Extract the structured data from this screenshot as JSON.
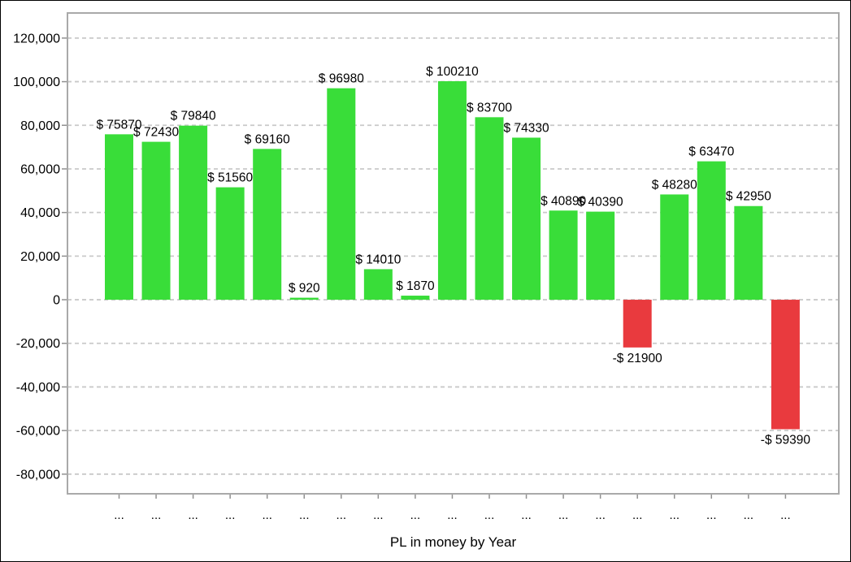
{
  "chart_data": {
    "type": "bar",
    "title": "PL in money by Year",
    "xlabel": "PL in money by Year",
    "ylabel": "",
    "legend": "none",
    "grid": "horizontal-dashed",
    "ylim": [
      -89000,
      131500
    ],
    "y_ticks": [
      120000,
      100000,
      80000,
      60000,
      40000,
      20000,
      0,
      -20000,
      -40000,
      -60000,
      -80000
    ],
    "y_tick_labels": [
      "120,000",
      "100,000",
      "80,000",
      "60,000",
      "40,000",
      "20,000",
      "0",
      "-20,000",
      "-40,000",
      "-60,000",
      "-80,000"
    ],
    "categories": [
      "...",
      "...",
      "...",
      "...",
      "...",
      "...",
      "...",
      "...",
      "...",
      "...",
      "...",
      "...",
      "...",
      "...",
      "...",
      "...",
      "...",
      "...",
      "..."
    ],
    "values": [
      75870,
      72430,
      79840,
      51560,
      69160,
      920,
      96980,
      14010,
      1870,
      100210,
      83700,
      74330,
      40890,
      40390,
      -21900,
      48280,
      63470,
      42950,
      -59390
    ],
    "bar_labels": [
      "$ 75870",
      "$ 72430",
      "$ 79840",
      "$ 51560",
      "$ 69160",
      "$ 920",
      "$ 96980",
      "$ 14010",
      "$ 1870",
      "$ 100210",
      "$ 83700",
      "$ 74330",
      "$ 40890",
      "$ 40390",
      "-$ 21900",
      "$ 48280",
      "$ 63470",
      "$ 42950",
      "-$ 59390"
    ],
    "colors": {
      "positive_bar": "#39DD39",
      "negative_bar": "#E93A3E",
      "gridline": "#C9C9C9",
      "plot_border": "#A9A9A9",
      "axis_tick": "#909090",
      "text": "#000000",
      "background": "#FFFFFF"
    }
  }
}
